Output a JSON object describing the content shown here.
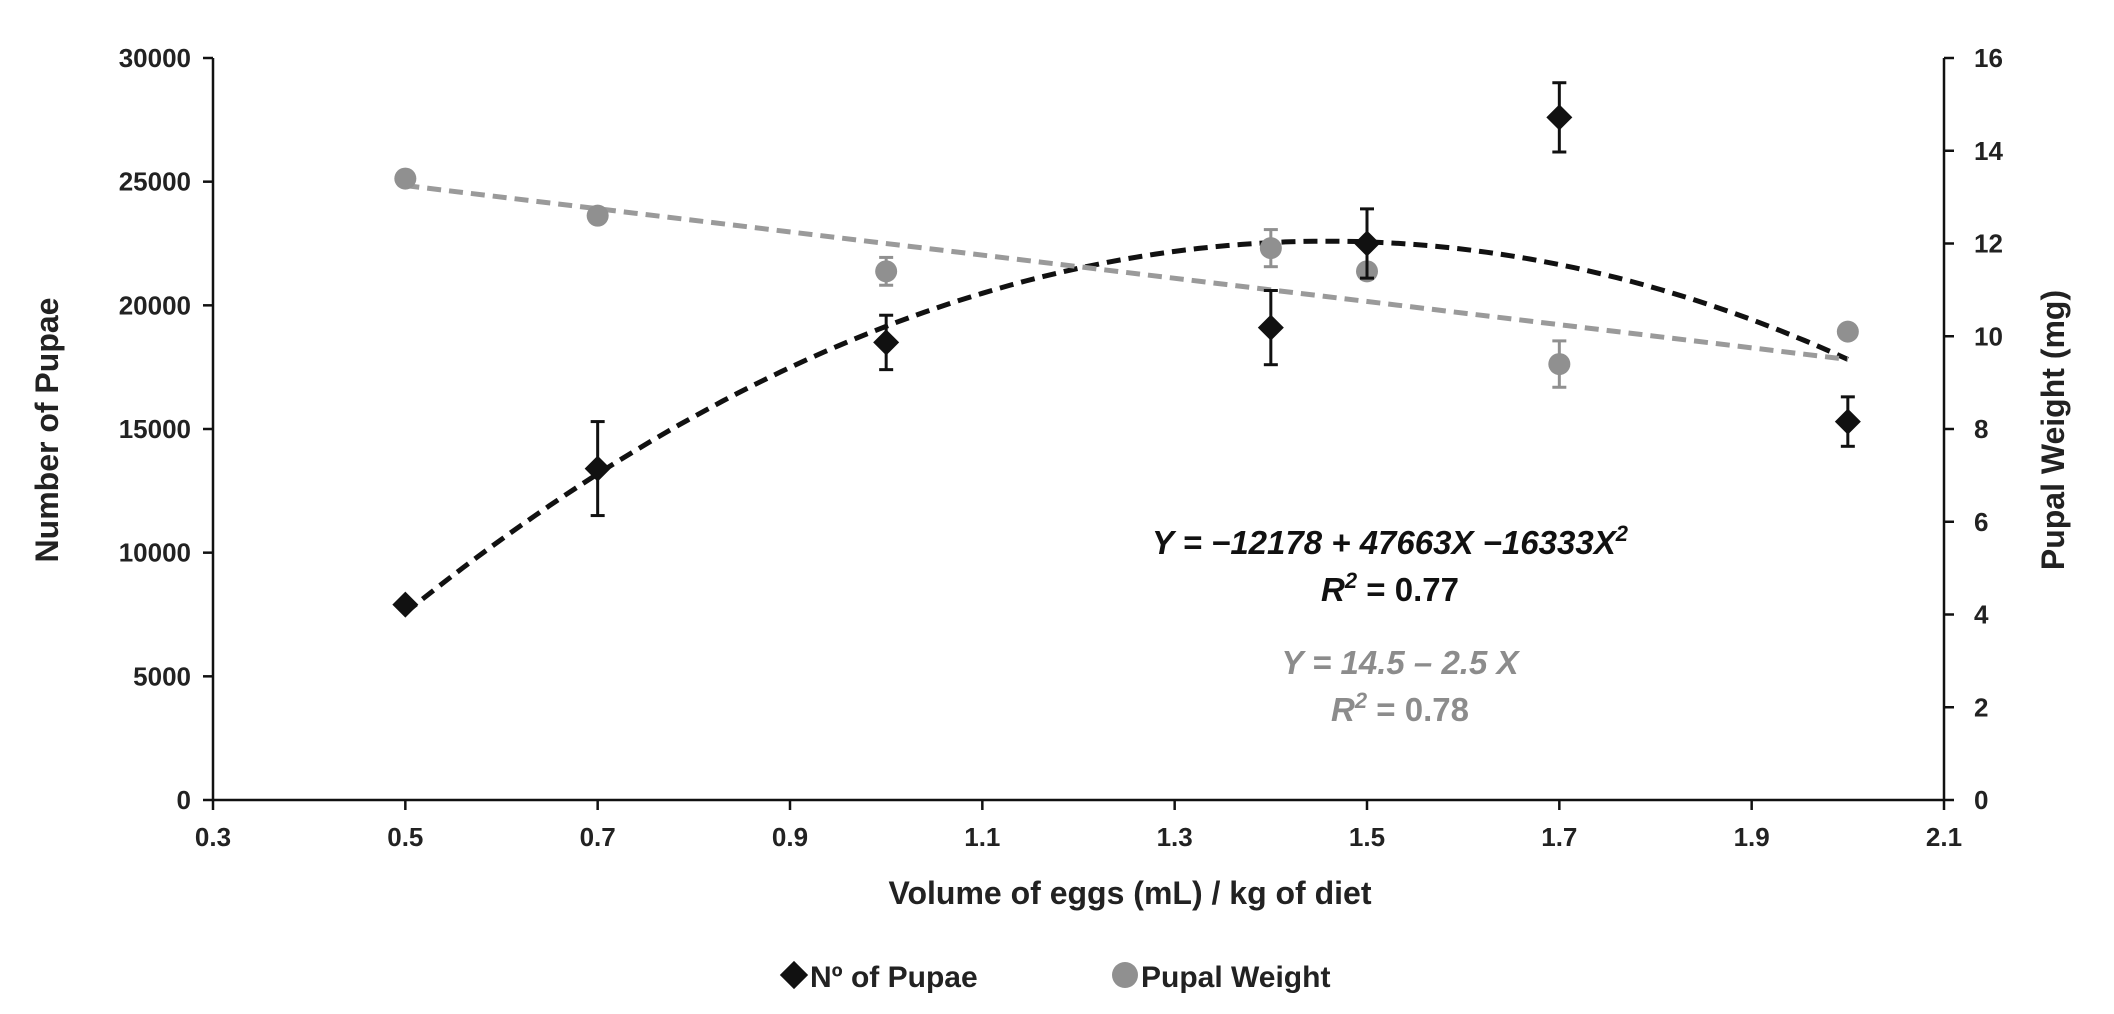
{
  "chart_data": {
    "type": "scatter",
    "title": "",
    "xlabel": "Volume of eggs (mL) / kg of diet",
    "ylabel_left": "Number of Pupae",
    "ylabel_right": "Pupal Weight (mg)",
    "xlim": [
      0.3,
      2.1
    ],
    "ylim_left": [
      0,
      30000
    ],
    "ylim_right": [
      0,
      16
    ],
    "x_ticks": [
      "0.3",
      "0.5",
      "0.7",
      "0.9",
      "1.1",
      "1.3",
      "1.5",
      "1.7",
      "1.9",
      "2.1"
    ],
    "y_left_ticks": [
      "0",
      "5000",
      "10000",
      "15000",
      "20000",
      "25000",
      "30000"
    ],
    "y_right_ticks": [
      "0",
      "2",
      "4",
      "6",
      "8",
      "10",
      "12",
      "14",
      "16"
    ],
    "grid": false,
    "legend_position": "bottom",
    "series": [
      {
        "name": "Nº of Pupae",
        "axis": "left",
        "marker": "diamond",
        "color": "#111111",
        "x": [
          0.5,
          0.7,
          1.0,
          1.4,
          1.5,
          1.7,
          2.0
        ],
        "y": [
          7900,
          13400,
          18500,
          19100,
          22500,
          27600,
          15300
        ],
        "err": [
          0,
          1900,
          1100,
          1500,
          1400,
          1400,
          1000
        ],
        "fit": {
          "kind": "quadratic",
          "coef": [
            -12178,
            47663,
            -16333
          ]
        }
      },
      {
        "name": "Pupal Weight",
        "axis": "right",
        "marker": "circle",
        "color": "#909090",
        "x": [
          0.5,
          0.7,
          1.0,
          1.4,
          1.5,
          1.7,
          2.0
        ],
        "y": [
          13.4,
          12.6,
          11.4,
          11.9,
          11.4,
          9.4,
          10.1
        ],
        "err": [
          0,
          0,
          0.3,
          0.4,
          0,
          0.5,
          0
        ],
        "fit": {
          "kind": "linear",
          "coef": [
            14.5,
            -2.5
          ]
        }
      }
    ],
    "annotations": {
      "eq1_pre": "Y = ",
      "eq1_body": "−12178 + 47663X −16333X",
      "eq1_exp": "2",
      "r2_1_r": "R",
      "r2_1_exp": "2",
      "r2_1_val": " = 0.77",
      "eq2": "Y = 14.5 – 2.5 X",
      "r2_2_r": "R",
      "r2_2_exp": "2",
      "r2_2_val": " = 0.78"
    }
  }
}
